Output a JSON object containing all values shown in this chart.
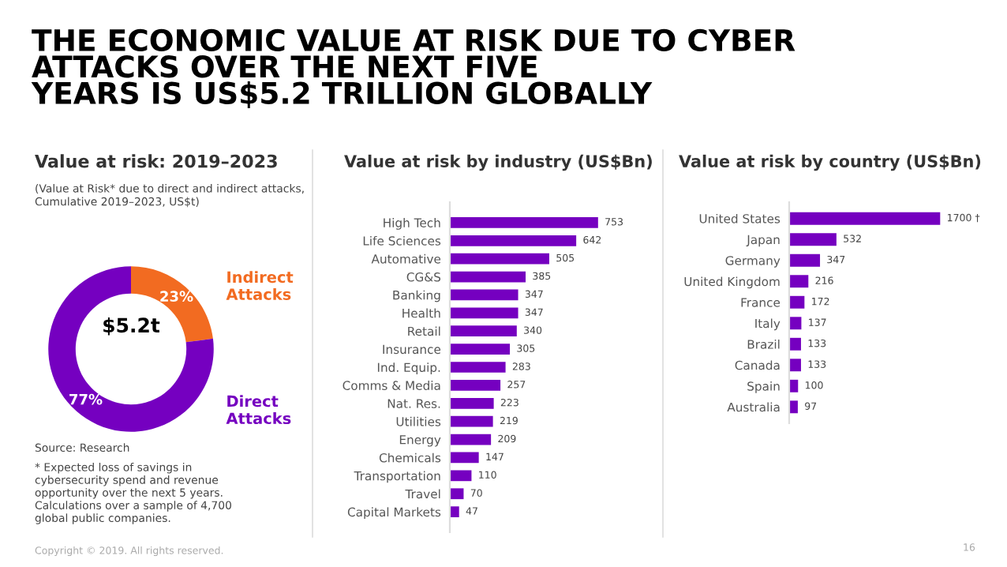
{
  "chart_data": [
    {
      "type": "donut",
      "title": "Value at risk: 2019–2023",
      "subtitle": "(Value at Risk* due to direct and indirect attacks,\nCumulative 2019–2023, US$t)",
      "categories": [
        "Indirect\nAttacks",
        "Direct\nAttacks"
      ],
      "values": [
        23,
        77
      ],
      "colors": [
        "#f26b21",
        "#7500c0"
      ],
      "value_labels": [
        "23%",
        "77%"
      ],
      "legend": false,
      "annotations": [
        "THE ECONOMIC VALUE AT RISK DUE TO CYBER\nATTACKS OVER THE NEXT FIVE\nYEARS IS US$5.2 TRILLION GLOBALLY",
        "$5.2t",
        "Source: Research",
        "* Expected loss of savings in\ncybersecurity spend and revenue\nopportunity over the next 5 years.\nCalculations over a sample of 4,700\nglobal public companies.",
        "Copyright © 2019. All rights reserved.",
        "16"
      ]
    },
    {
      "type": "bar",
      "orientation": "horizontal",
      "title": "Value at risk by industry (US$Bn)",
      "categories": [
        "High Tech",
        "Life Sciences",
        "Automative",
        "CG&S",
        "Banking",
        "Health",
        "Retail",
        "Insurance",
        "Ind. Equip.",
        "Comms & Media",
        "Nat. Res.",
        "Utilities",
        "Energy",
        "Chemicals",
        "Transportation",
        "Travel",
        "Capital Markets"
      ],
      "values": [
        753,
        642,
        505,
        385,
        347,
        347,
        340,
        305,
        283,
        257,
        223,
        219,
        209,
        147,
        110,
        70,
        47
      ],
      "color": "#7500c0",
      "data_labels": true
    },
    {
      "type": "bar",
      "orientation": "horizontal",
      "title": "Value at risk by country (US$Bn)",
      "categories": [
        "United States",
        "Japan",
        "Germany",
        "United Kingdom",
        "France",
        "Italy",
        "Brazil",
        "Canada",
        "Spain",
        "Australia"
      ],
      "values": [
        1700,
        532,
        347,
        216,
        172,
        137,
        133,
        133,
        100,
        97
      ],
      "value_labels": [
        "1700 †",
        "532",
        "347",
        "216",
        "172",
        "137",
        "133",
        "133",
        "100",
        "97"
      ],
      "color": "#7500c0"
    }
  ]
}
